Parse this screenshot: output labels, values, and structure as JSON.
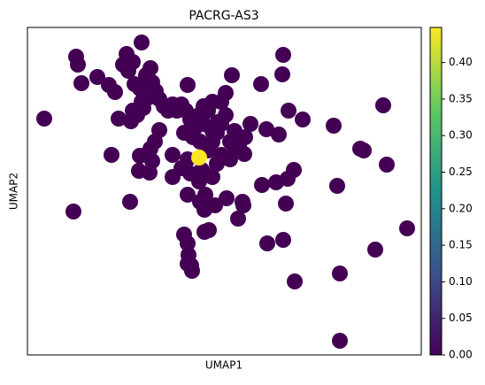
{
  "chart_data": {
    "type": "scatter",
    "title": "PACRG-AS3",
    "x_label": "UMAP1",
    "y_label": "UMAP2",
    "xlim": [
      0,
      445
    ],
    "ylim": [
      0,
      370
    ],
    "x": [
      19,
      55,
      57,
      61,
      52,
      95,
      116,
      79,
      92,
      99,
      103,
      108,
      112,
      119,
      129,
      114,
      121,
      127,
      134,
      139,
      141,
      145,
      137,
      129,
      119,
      124,
      117,
      131,
      149,
      154,
      159,
      164,
      169,
      174,
      179,
      184,
      189,
      194,
      199,
      204,
      209,
      219,
      224,
      231,
      181,
      149,
      144,
      139,
      127,
      141,
      126,
      138,
      164,
      181,
      204,
      209,
      214,
      219,
      224,
      234,
      229,
      239,
      234,
      245,
      252,
      246,
      264,
      270,
      284,
      289,
      288,
      295,
      311,
      346,
      376,
      380,
      402,
      406,
      301,
      294,
      281,
      265,
      350,
      199,
      209,
      194,
      184,
      181,
      201,
      212,
      200,
      195,
      225,
      243,
      244,
      238,
      177,
      181,
      182,
      181,
      185,
      186,
      205,
      200,
      271,
      289,
      292,
      429,
      393,
      302,
      353,
      353,
      199,
      209,
      215,
      177,
      187,
      195,
      219,
      229,
      214,
      197,
      174,
      164,
      194
    ],
    "y": [
      267,
      337,
      328,
      307,
      162,
      226,
      173,
      314,
      305,
      297,
      267,
      328,
      340,
      331,
      353,
      321,
      306,
      301,
      316,
      324,
      308,
      298,
      291,
      286,
      276,
      271,
      264,
      279,
      289,
      281,
      276,
      283,
      276,
      283,
      276,
      266,
      256,
      271,
      281,
      276,
      286,
      286,
      296,
      316,
      305,
      254,
      241,
      233,
      225,
      219,
      208,
      206,
      226,
      221,
      231,
      241,
      251,
      261,
      271,
      253,
      241,
      236,
      229,
      227,
      261,
      246,
      306,
      255,
      249,
      339,
      317,
      276,
      266,
      259,
      233,
      231,
      282,
      215,
      209,
      199,
      195,
      192,
      191,
      206,
      201,
      196,
      205,
      181,
      181,
      169,
      164,
      173,
      177,
      173,
      169,
      154,
      136,
      126,
      113,
      103,
      101,
      95,
      141,
      139,
      126,
      130,
      171,
      143,
      119,
      83,
      92,
      16,
      261,
      253,
      263,
      251,
      246,
      241,
      226,
      221,
      216,
      209,
      211,
      201,
      223
    ],
    "values": [
      0,
      0,
      0,
      0,
      0,
      0,
      0,
      0,
      0,
      0,
      0,
      0,
      0,
      0,
      0,
      0,
      0,
      0,
      0,
      0,
      0,
      0,
      0,
      0,
      0,
      0,
      0,
      0,
      0,
      0,
      0,
      0,
      0,
      0,
      0,
      0,
      0,
      0,
      0,
      0,
      0,
      0,
      0,
      0,
      0,
      0,
      0,
      0,
      0,
      0,
      0,
      0,
      0,
      0,
      0,
      0,
      0,
      0,
      0,
      0,
      0,
      0,
      0,
      0,
      0,
      0,
      0,
      0,
      0,
      0,
      0,
      0,
      0,
      0,
      0,
      0,
      0,
      0,
      0,
      0,
      0,
      0,
      0,
      0,
      0,
      0,
      0,
      0,
      0,
      0,
      0,
      0,
      0,
      0,
      0,
      0,
      0,
      0,
      0,
      0,
      0,
      0,
      0,
      0,
      0,
      0,
      0,
      0,
      0,
      0,
      0,
      0,
      0,
      0,
      0,
      0,
      0,
      0,
      0,
      0,
      0,
      0,
      0,
      0,
      0.448
    ],
    "clim": [
      0,
      0.448
    ],
    "colormap": [
      "#440154",
      "#3b528b",
      "#21918c",
      "#5ec962",
      "#fde725"
    ],
    "cticks": [
      {
        "value": 0,
        "label": "0.00"
      },
      {
        "value": 0.05,
        "label": "0.05"
      },
      {
        "value": 0.1,
        "label": "0.10"
      },
      {
        "value": 0.15,
        "label": "0.15"
      },
      {
        "value": 0.2,
        "label": "0.20"
      },
      {
        "value": 0.25,
        "label": "0.25"
      },
      {
        "value": 0.3,
        "label": "0.30"
      },
      {
        "value": 0.35,
        "label": "0.35"
      },
      {
        "value": 0.4,
        "label": "0.40"
      }
    ]
  }
}
